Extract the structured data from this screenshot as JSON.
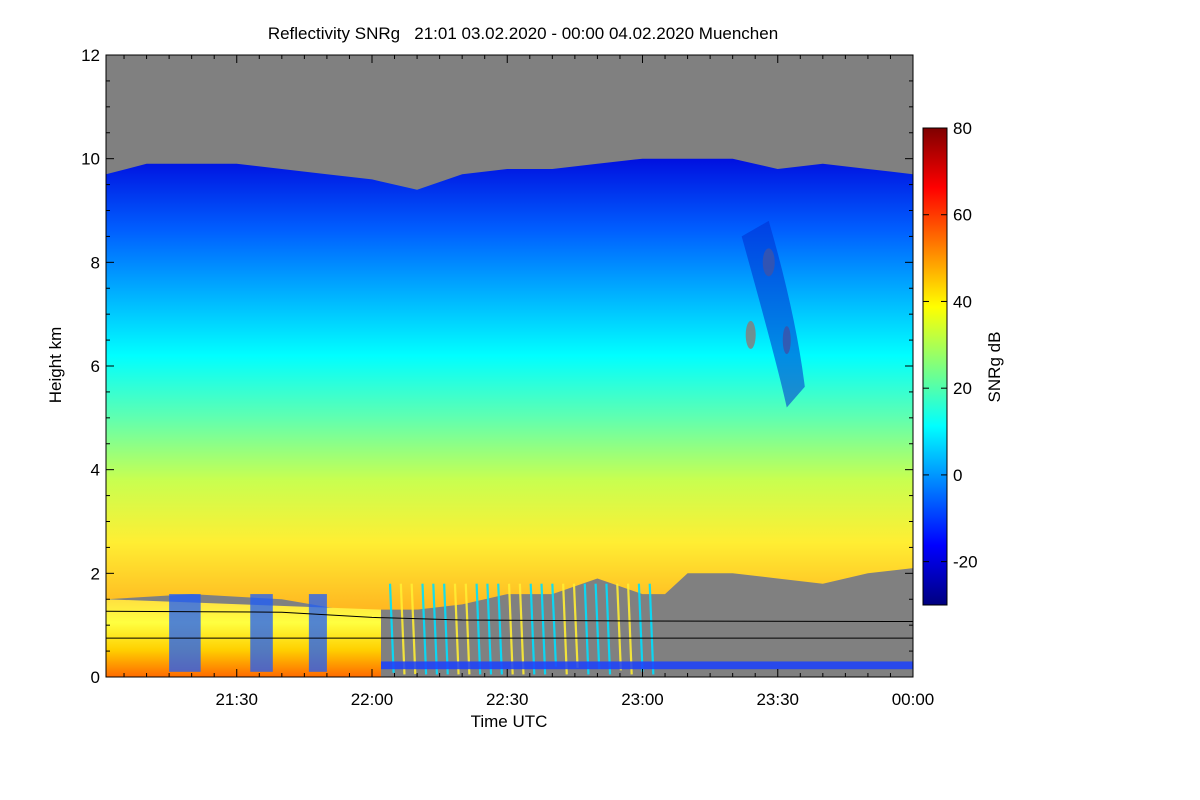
{
  "chart_data": {
    "type": "heatmap",
    "title": "Reflectivity SNRg   21:01 03.02.2020 - 00:00 04.02.2020 Muenchen",
    "xlabel": "Time UTC",
    "ylabel": "Height km",
    "colorbar_label": "SNRg dB",
    "x_range_minutes_utc": [
      1261,
      1440
    ],
    "x_ticks": [
      {
        "label": "21:30",
        "minutes": 1290
      },
      {
        "label": "22:00",
        "minutes": 1320
      },
      {
        "label": "22:30",
        "minutes": 1350
      },
      {
        "label": "23:00",
        "minutes": 1380
      },
      {
        "label": "23:30",
        "minutes": 1410
      },
      {
        "label": "00:00",
        "minutes": 1440
      }
    ],
    "ylim": [
      0,
      12
    ],
    "y_ticks": [
      {
        "label": "0",
        "value": 0
      },
      {
        "label": "2",
        "value": 2
      },
      {
        "label": "4",
        "value": 4
      },
      {
        "label": "6",
        "value": 6
      },
      {
        "label": "8",
        "value": 8
      },
      {
        "label": "10",
        "value": 10
      },
      {
        "label": "12",
        "value": 12
      }
    ],
    "colorbar_range": [
      -30,
      80
    ],
    "colorbar_ticks": [
      {
        "label": "-20",
        "value": -20
      },
      {
        "label": "0",
        "value": 0
      },
      {
        "label": "20",
        "value": 20
      },
      {
        "label": "40",
        "value": 40
      },
      {
        "label": "60",
        "value": 60
      },
      {
        "label": "80",
        "value": 80
      }
    ],
    "colormap": [
      "#00007f",
      "#0000ff",
      "#007fff",
      "#00ffff",
      "#7fff7f",
      "#ffff00",
      "#ff7f00",
      "#ff0000",
      "#7f0000"
    ],
    "no_signal_color": "#808080",
    "echo_top_km": [
      {
        "t": 1261,
        "h": 9.7
      },
      {
        "t": 1270,
        "h": 9.9
      },
      {
        "t": 1280,
        "h": 9.9
      },
      {
        "t": 1290,
        "h": 9.9
      },
      {
        "t": 1300,
        "h": 9.8
      },
      {
        "t": 1310,
        "h": 9.7
      },
      {
        "t": 1320,
        "h": 9.6
      },
      {
        "t": 1330,
        "h": 9.4
      },
      {
        "t": 1340,
        "h": 9.7
      },
      {
        "t": 1350,
        "h": 9.8
      },
      {
        "t": 1360,
        "h": 9.8
      },
      {
        "t": 1370,
        "h": 9.9
      },
      {
        "t": 1380,
        "h": 10.0
      },
      {
        "t": 1390,
        "h": 10.0
      },
      {
        "t": 1400,
        "h": 10.0
      },
      {
        "t": 1410,
        "h": 9.8
      },
      {
        "t": 1420,
        "h": 9.9
      },
      {
        "t": 1430,
        "h": 9.8
      },
      {
        "t": 1440,
        "h": 9.7
      }
    ],
    "echo_base_km": [
      {
        "t": 1261,
        "h": 1.5
      },
      {
        "t": 1280,
        "h": 1.6
      },
      {
        "t": 1300,
        "h": 1.5
      },
      {
        "t": 1320,
        "h": 1.2
      },
      {
        "t": 1330,
        "h": 1.3
      },
      {
        "t": 1340,
        "h": 1.4
      },
      {
        "t": 1350,
        "h": 1.6
      },
      {
        "t": 1360,
        "h": 1.6
      },
      {
        "t": 1370,
        "h": 1.9
      },
      {
        "t": 1380,
        "h": 1.6
      },
      {
        "t": 1385,
        "h": 1.6
      },
      {
        "t": 1390,
        "h": 2.0
      },
      {
        "t": 1400,
        "h": 2.0
      },
      {
        "t": 1410,
        "h": 1.9
      },
      {
        "t": 1420,
        "h": 1.8
      },
      {
        "t": 1430,
        "h": 2.0
      },
      {
        "t": 1440,
        "h": 2.1
      }
    ],
    "mixing_layer_km": [
      {
        "t": 1261,
        "h": 1.27
      },
      {
        "t": 1300,
        "h": 1.25
      },
      {
        "t": 1320,
        "h": 1.15
      },
      {
        "t": 1340,
        "h": 1.1
      },
      {
        "t": 1380,
        "h": 1.08
      },
      {
        "t": 1440,
        "h": 1.07
      }
    ],
    "lower_layer_km": 0.75
  }
}
